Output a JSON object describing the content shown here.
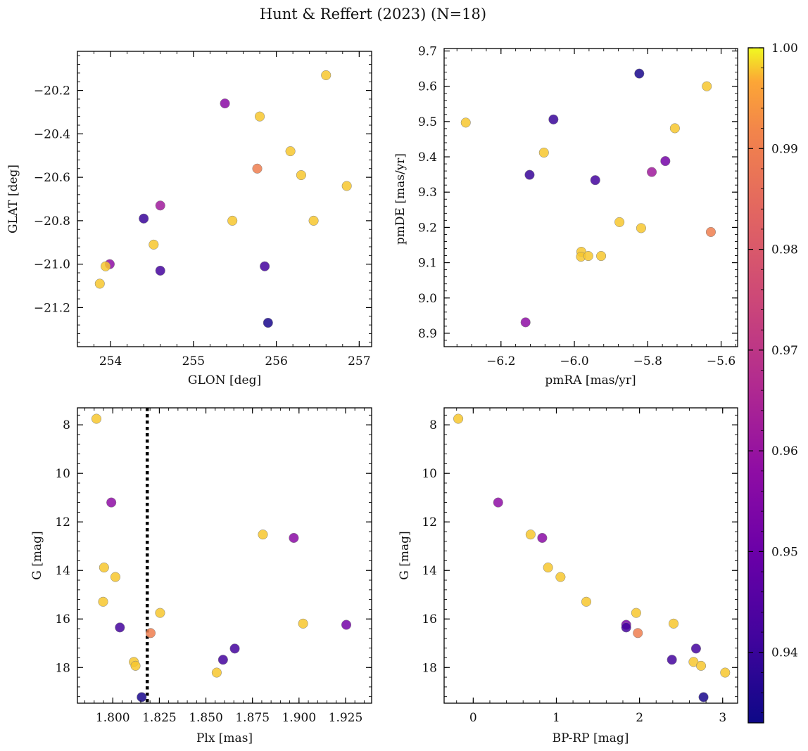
{
  "chart_data": [
    {
      "type": "scatter",
      "title": "",
      "xlabel": "GLON [deg]",
      "ylabel": "GLAT [deg]",
      "xlim": [
        253.6,
        257.15
      ],
      "ylim": [
        -21.38,
        -20.02
      ],
      "xticks": [
        254,
        255,
        256,
        257
      ],
      "xtick_labels": [
        "254",
        "255",
        "256",
        "257"
      ],
      "yticks": [
        -21.2,
        -21.0,
        -20.8,
        -20.6,
        -20.4,
        -20.2
      ],
      "ytick_labels": [
        "−21.2",
        "−21.0",
        "−20.8",
        "−20.6",
        "−20.4",
        "−20.2"
      ],
      "points": [
        {
          "x": 256.6,
          "y": -20.13,
          "c": 0.998
        },
        {
          "x": 255.38,
          "y": -20.26,
          "c": 0.957
        },
        {
          "x": 255.8,
          "y": -20.32,
          "c": 0.998
        },
        {
          "x": 256.17,
          "y": -20.48,
          "c": 0.998
        },
        {
          "x": 255.77,
          "y": -20.56,
          "c": 0.99
        },
        {
          "x": 256.3,
          "y": -20.59,
          "c": 0.998
        },
        {
          "x": 256.85,
          "y": -20.64,
          "c": 0.998
        },
        {
          "x": 254.6,
          "y": -20.73,
          "c": 0.962
        },
        {
          "x": 254.4,
          "y": -20.79,
          "c": 0.94
        },
        {
          "x": 255.47,
          "y": -20.8,
          "c": 0.998
        },
        {
          "x": 256.45,
          "y": -20.8,
          "c": 0.998
        },
        {
          "x": 254.52,
          "y": -20.91,
          "c": 0.998
        },
        {
          "x": 253.99,
          "y": -21.0,
          "c": 0.958
        },
        {
          "x": 253.94,
          "y": -21.01,
          "c": 0.998
        },
        {
          "x": 255.86,
          "y": -21.01,
          "c": 0.942
        },
        {
          "x": 254.6,
          "y": -21.03,
          "c": 0.942
        },
        {
          "x": 253.87,
          "y": -21.09,
          "c": 0.998
        },
        {
          "x": 255.9,
          "y": -21.27,
          "c": 0.935
        }
      ]
    },
    {
      "type": "scatter",
      "title": "",
      "xlabel": "pmRA [mas/yr]",
      "ylabel": "pmDE [mas/yr]",
      "xlim": [
        -6.355,
        -5.555
      ],
      "ylim": [
        8.862,
        9.707
      ],
      "xticks": [
        -6.2,
        -6.0,
        -5.8,
        -5.6
      ],
      "xtick_labels": [
        "−6.2",
        "−6.0",
        "−5.8",
        "−5.6"
      ],
      "yticks": [
        8.9,
        9.0,
        9.1,
        9.2,
        9.3,
        9.4,
        9.5,
        9.6,
        9.7
      ],
      "ytick_labels": [
        "8.9",
        "9.0",
        "9.1",
        "9.2",
        "9.3",
        "9.4",
        "9.5",
        "9.6",
        "9.7"
      ],
      "points": [
        {
          "x": -5.823,
          "y": 9.636,
          "c": 0.935
        },
        {
          "x": -5.639,
          "y": 9.6,
          "c": 0.998
        },
        {
          "x": -6.057,
          "y": 9.506,
          "c": 0.94
        },
        {
          "x": -6.296,
          "y": 9.497,
          "c": 0.998
        },
        {
          "x": -5.726,
          "y": 9.481,
          "c": 0.998
        },
        {
          "x": -6.083,
          "y": 9.412,
          "c": 0.998
        },
        {
          "x": -5.752,
          "y": 9.388,
          "c": 0.952
        },
        {
          "x": -5.789,
          "y": 9.357,
          "c": 0.962
        },
        {
          "x": -6.122,
          "y": 9.349,
          "c": 0.94
        },
        {
          "x": -5.943,
          "y": 9.334,
          "c": 0.942
        },
        {
          "x": -5.877,
          "y": 9.215,
          "c": 0.998
        },
        {
          "x": -5.818,
          "y": 9.198,
          "c": 0.998
        },
        {
          "x": -5.628,
          "y": 9.187,
          "c": 0.99
        },
        {
          "x": -5.981,
          "y": 9.131,
          "c": 0.998
        },
        {
          "x": -5.982,
          "y": 9.117,
          "c": 0.998
        },
        {
          "x": -5.962,
          "y": 9.119,
          "c": 0.998
        },
        {
          "x": -5.927,
          "y": 9.119,
          "c": 0.998
        },
        {
          "x": -6.133,
          "y": 8.931,
          "c": 0.958
        }
      ]
    },
    {
      "type": "scatter",
      "title": "",
      "xlabel": "Plx [mas]",
      "ylabel": "G [mag]",
      "xlim": [
        1.781,
        1.939
      ],
      "ylim": [
        19.47,
        7.3
      ],
      "inverted_y": true,
      "xticks": [
        1.8,
        1.825,
        1.85,
        1.875,
        1.9,
        1.925
      ],
      "xtick_labels": [
        "1.800",
        "1.825",
        "1.850",
        "1.875",
        "1.900",
        "1.925"
      ],
      "yticks": [
        8,
        10,
        12,
        14,
        16,
        18
      ],
      "ytick_labels": [
        "8",
        "10",
        "12",
        "14",
        "16",
        "18"
      ],
      "vline": {
        "x": 1.8185,
        "style": "dotted",
        "color": "#000000"
      },
      "points": [
        {
          "x": 1.7912,
          "y": 7.75,
          "c": 0.998
        },
        {
          "x": 1.7992,
          "y": 11.2,
          "c": 0.958
        },
        {
          "x": 1.8806,
          "y": 12.52,
          "c": 0.998
        },
        {
          "x": 1.8972,
          "y": 12.66,
          "c": 0.957
        },
        {
          "x": 1.7953,
          "y": 13.88,
          "c": 0.998
        },
        {
          "x": 1.8014,
          "y": 14.27,
          "c": 0.998
        },
        {
          "x": 1.7948,
          "y": 15.29,
          "c": 0.998
        },
        {
          "x": 1.8254,
          "y": 15.75,
          "c": 0.998
        },
        {
          "x": 1.9022,
          "y": 16.19,
          "c": 0.998
        },
        {
          "x": 1.9254,
          "y": 16.24,
          "c": 0.952
        },
        {
          "x": 1.8038,
          "y": 16.35,
          "c": 0.942
        },
        {
          "x": 1.8203,
          "y": 16.58,
          "c": 0.99
        },
        {
          "x": 1.8655,
          "y": 17.22,
          "c": 0.942
        },
        {
          "x": 1.8592,
          "y": 17.68,
          "c": 0.942
        },
        {
          "x": 1.8113,
          "y": 17.77,
          "c": 0.998
        },
        {
          "x": 1.8122,
          "y": 17.93,
          "c": 0.998
        },
        {
          "x": 1.8558,
          "y": 18.21,
          "c": 0.998
        },
        {
          "x": 1.8155,
          "y": 19.22,
          "c": 0.935
        }
      ]
    },
    {
      "type": "scatter",
      "title": "",
      "xlabel": "BP-RP [mag]",
      "ylabel": "G [mag]",
      "xlim": [
        -0.35,
        3.18
      ],
      "ylim": [
        19.47,
        7.3
      ],
      "inverted_y": true,
      "xticks": [
        0,
        1,
        2,
        3
      ],
      "xtick_labels": [
        "0",
        "1",
        "2",
        "3"
      ],
      "yticks": [
        8,
        10,
        12,
        14,
        16,
        18
      ],
      "ytick_labels": [
        "8",
        "10",
        "12",
        "14",
        "16",
        "18"
      ],
      "points": [
        {
          "x": -0.18,
          "y": 7.75,
          "c": 0.998
        },
        {
          "x": 0.3,
          "y": 11.2,
          "c": 0.958
        },
        {
          "x": 0.69,
          "y": 12.52,
          "c": 0.998
        },
        {
          "x": 0.83,
          "y": 12.66,
          "c": 0.957
        },
        {
          "x": 0.9,
          "y": 13.88,
          "c": 0.998
        },
        {
          "x": 1.05,
          "y": 14.27,
          "c": 0.998
        },
        {
          "x": 1.36,
          "y": 15.29,
          "c": 0.998
        },
        {
          "x": 1.96,
          "y": 15.75,
          "c": 0.998
        },
        {
          "x": 2.41,
          "y": 16.19,
          "c": 0.998
        },
        {
          "x": 1.84,
          "y": 16.24,
          "c": 0.952
        },
        {
          "x": 1.84,
          "y": 16.35,
          "c": 0.942
        },
        {
          "x": 1.98,
          "y": 16.58,
          "c": 0.99
        },
        {
          "x": 2.68,
          "y": 17.22,
          "c": 0.942
        },
        {
          "x": 2.39,
          "y": 17.68,
          "c": 0.942
        },
        {
          "x": 2.65,
          "y": 17.77,
          "c": 0.998
        },
        {
          "x": 2.74,
          "y": 17.93,
          "c": 0.998
        },
        {
          "x": 3.03,
          "y": 18.21,
          "c": 0.998
        },
        {
          "x": 2.77,
          "y": 19.22,
          "c": 0.935
        }
      ]
    }
  ],
  "figure": {
    "title": "Hunt & Reffert (2023) (N=18)",
    "colorbar": {
      "cmap": "plasma",
      "vmin": 0.933,
      "vmax": 1.0,
      "ticks": [
        0.94,
        0.95,
        0.96,
        0.97,
        0.98,
        0.99,
        1.0
      ],
      "tick_labels": [
        "0.94",
        "0.95",
        "0.96",
        "0.97",
        "0.98",
        "0.99",
        "1.00"
      ]
    },
    "colors": {
      "marker_edge": "#7f7f7f",
      "axes": "#000000",
      "background": "#ffffff"
    }
  }
}
